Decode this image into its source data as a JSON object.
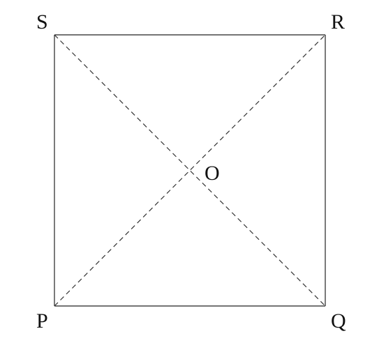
{
  "diagram": {
    "vertices": {
      "S": "S",
      "R": "R",
      "P": "P",
      "Q": "Q"
    },
    "center": "O",
    "colors": {
      "line": "#222222",
      "text": "#111111",
      "background": "#ffffff"
    }
  }
}
